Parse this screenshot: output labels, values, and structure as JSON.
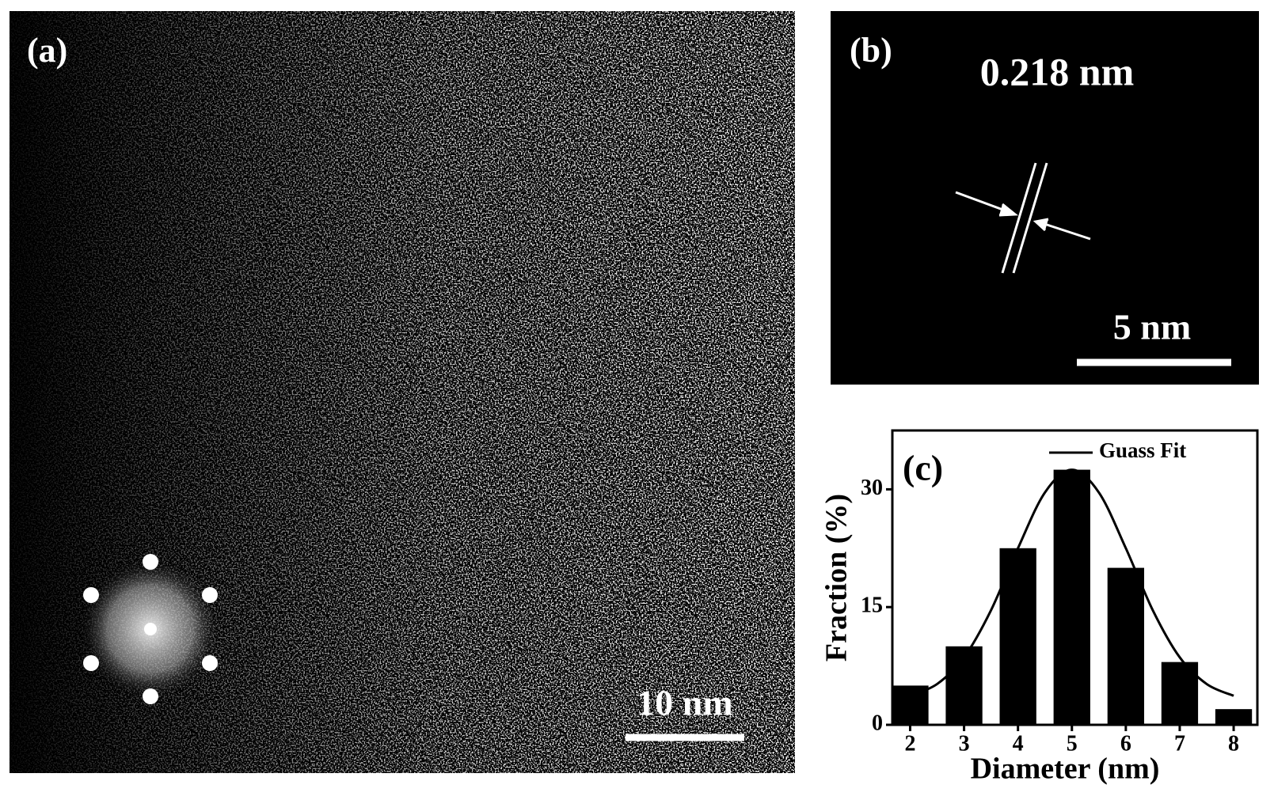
{
  "panel_a": {
    "label": "(a)",
    "scale_bar": "10 nm"
  },
  "panel_b": {
    "label": "(b)",
    "spacing": "0.218 nm",
    "scale_bar": "5 nm"
  },
  "chart_data": {
    "type": "bar",
    "panel_label": "(c)",
    "x_label": "Diameter (nm)",
    "y_label": "Fraction (%)",
    "x": [
      2,
      3,
      4,
      5,
      6,
      7,
      8
    ],
    "values": [
      5,
      10,
      22.5,
      32.5,
      20,
      8,
      2
    ],
    "color": "#000000",
    "fit": {
      "name": "Guass Fit",
      "type": "line",
      "color": "#000000",
      "x": [
        2,
        2.5,
        3,
        3.5,
        4,
        4.5,
        5,
        5.5,
        6,
        6.5,
        7,
        7.5,
        8
      ],
      "values": [
        3.7,
        5.2,
        8.6,
        14.6,
        22.5,
        29.6,
        32.5,
        29.6,
        22.5,
        14.6,
        8.6,
        5.2,
        3.7
      ]
    },
    "xlim": [
      1.67,
      8.44
    ],
    "ylim": [
      0,
      37.5
    ],
    "xticks": [
      2,
      3,
      4,
      5,
      6,
      7,
      8
    ],
    "yticks": [
      0,
      15,
      30
    ]
  }
}
